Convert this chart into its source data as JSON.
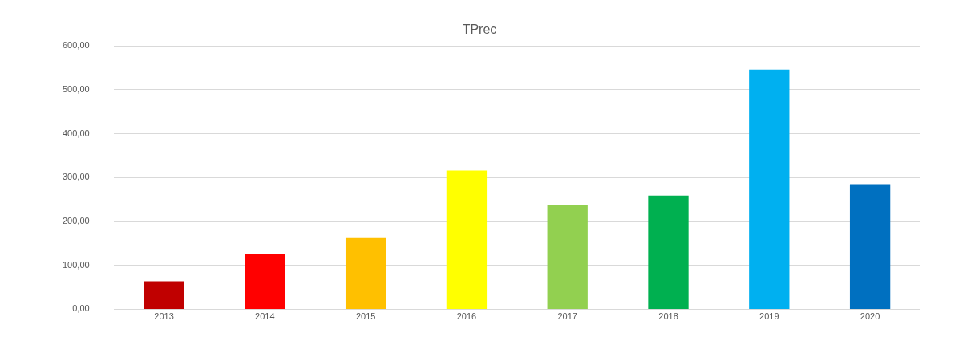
{
  "chart_data": {
    "type": "bar",
    "title": "TPrec",
    "categories": [
      "2013",
      "2014",
      "2015",
      "2016",
      "2017",
      "2018",
      "2019",
      "2020"
    ],
    "values": [
      64,
      125,
      162,
      316,
      237,
      259,
      546,
      285
    ],
    "colors": [
      "#c00000",
      "#ff0000",
      "#ffc000",
      "#ffff00",
      "#92d050",
      "#00b050",
      "#00b0f0",
      "#0070c0"
    ],
    "ylim": [
      0,
      600
    ],
    "yticks": [
      {
        "value": 0,
        "label": "0,00"
      },
      {
        "value": 100,
        "label": "100,00"
      },
      {
        "value": 200,
        "label": "200,00"
      },
      {
        "value": 300,
        "label": "300,00"
      },
      {
        "value": 400,
        "label": "400,00"
      },
      {
        "value": 500,
        "label": "500,00"
      },
      {
        "value": 600,
        "label": "600,00"
      }
    ],
    "grid": "y",
    "legend": false
  }
}
